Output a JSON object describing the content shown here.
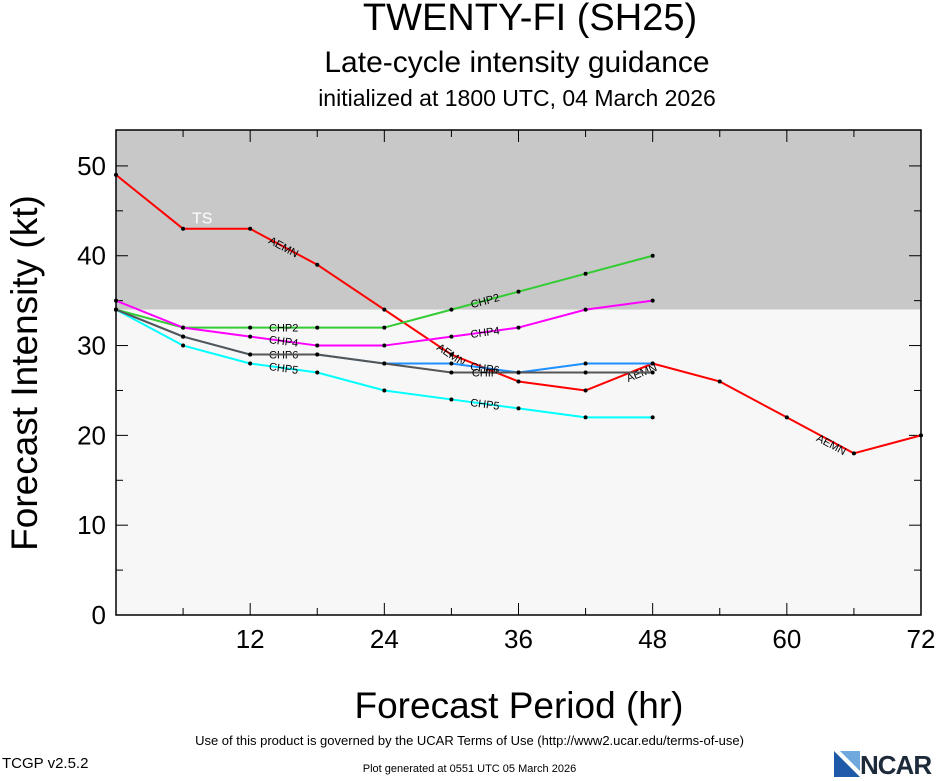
{
  "header": {
    "title": "TWENTY-FI (SH25)",
    "subtitle": "Late-cycle intensity guidance",
    "initialized": "initialized at 1800 UTC, 04 March 2026"
  },
  "footer": {
    "terms": "Use of this product is governed by the UCAR Terms of Use (http://www2.ucar.edu/terms-of-use)",
    "version": "TCGP v2.5.2",
    "generated": "Plot generated at 0551 UTC   05 March 2026",
    "logo": "NCAR"
  },
  "colors": {
    "ts_band": "#c8c8c8",
    "below_band": "#f7f7f7",
    "AEMN": "#ff0000",
    "CHP2": "#33cc33",
    "CHP4": "#ff00ff",
    "CHP5": "#00ffff",
    "CHP6": "#1e90ff",
    "CHIP": "#555555"
  },
  "chart_data": {
    "type": "line",
    "xlabel": "Forecast Period (hr)",
    "ylabel": "Forecast Intensity (kt)",
    "xlim": [
      0,
      72
    ],
    "ylim": [
      0,
      54
    ],
    "xticks": [
      12,
      24,
      36,
      48,
      60,
      72
    ],
    "yticks": [
      0,
      10,
      20,
      30,
      40,
      50
    ],
    "bands": [
      {
        "label": "TS",
        "from": 34,
        "to": 54,
        "color": "#c8c8c8"
      },
      {
        "label": "",
        "from": 0,
        "to": 34,
        "color": "#f7f7f7"
      }
    ],
    "series": [
      {
        "name": "AEMN",
        "color": "#ff0000",
        "x": [
          0,
          6,
          12,
          18,
          24,
          30,
          36,
          42,
          48,
          54,
          60,
          66,
          72
        ],
        "y": [
          49,
          43,
          43,
          39,
          34,
          29,
          26,
          25,
          28,
          26,
          22,
          18,
          20
        ],
        "labels": [
          {
            "x": 15,
            "y": 41
          },
          {
            "x": 30,
            "y": 29
          },
          {
            "x": 47,
            "y": 27
          },
          {
            "x": 64,
            "y": 19
          }
        ]
      },
      {
        "name": "CHP2",
        "color": "#33cc33",
        "x": [
          0,
          6,
          12,
          18,
          24,
          30,
          36,
          42,
          48
        ],
        "y": [
          34,
          32,
          32,
          32,
          32,
          34,
          36,
          38,
          40
        ],
        "labels": [
          {
            "x": 15,
            "y": 32
          },
          {
            "x": 33,
            "y": 35
          }
        ]
      },
      {
        "name": "CHP4",
        "color": "#ff00ff",
        "x": [
          0,
          6,
          12,
          18,
          24,
          30,
          36,
          42,
          48
        ],
        "y": [
          35,
          32,
          31,
          30,
          30,
          31,
          32,
          34,
          35
        ],
        "labels": [
          {
            "x": 15,
            "y": 30.5
          },
          {
            "x": 33,
            "y": 31.5
          }
        ]
      },
      {
        "name": "CHP5",
        "color": "#00ffff",
        "x": [
          0,
          6,
          12,
          18,
          24,
          30,
          36,
          42,
          48
        ],
        "y": [
          34,
          30,
          28,
          27,
          25,
          24,
          23,
          22,
          22
        ],
        "labels": [
          {
            "x": 15,
            "y": 27.5
          },
          {
            "x": 33,
            "y": 23.5
          }
        ]
      },
      {
        "name": "CHP6",
        "color": "#1e90ff",
        "x": [
          0,
          6,
          12,
          18,
          24,
          30,
          36,
          42,
          48
        ],
        "y": [
          34,
          31,
          29,
          29,
          28,
          28,
          27,
          28,
          28
        ],
        "labels": [
          {
            "x": 15,
            "y": 29
          },
          {
            "x": 33,
            "y": 27.5
          }
        ]
      },
      {
        "name": "CHIP",
        "color": "#555555",
        "x": [
          0,
          6,
          12,
          18,
          24,
          30,
          36,
          42,
          48
        ],
        "y": [
          34,
          31,
          29,
          29,
          28,
          27,
          27,
          27,
          27
        ],
        "labels": [
          {
            "x": 33,
            "y": 27
          }
        ]
      }
    ]
  }
}
